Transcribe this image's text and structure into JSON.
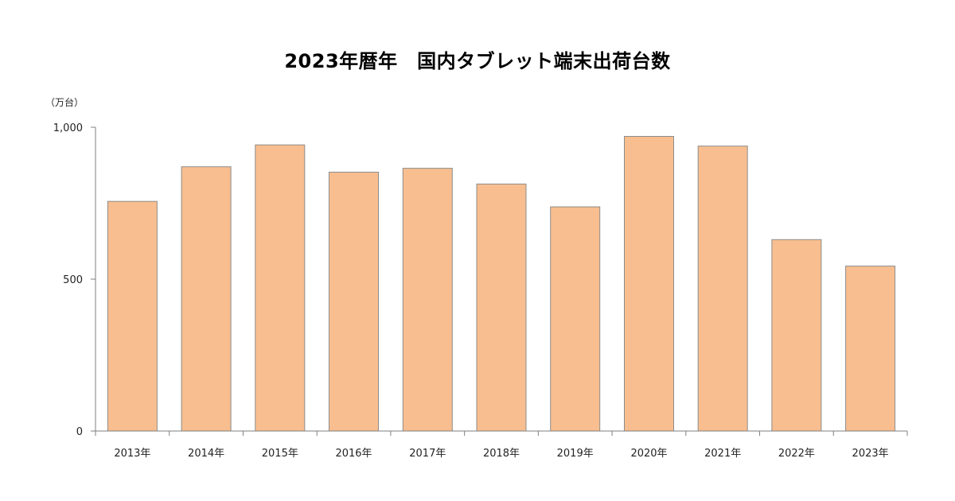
{
  "chart_data": {
    "type": "bar",
    "title": "2023年暦年　国内タブレット端末出荷台数",
    "y_unit_label": "（万台）",
    "xlabel": "",
    "ylabel": "",
    "categories": [
      "2013年",
      "2014年",
      "2015年",
      "2016年",
      "2017年",
      "2018年",
      "2019年",
      "2020年",
      "2021年",
      "2022年",
      "2023年"
    ],
    "values": [
      756,
      870,
      942,
      852,
      865,
      813,
      738,
      970,
      938,
      630,
      543
    ],
    "ylim": [
      0,
      1000
    ],
    "yticks": [
      0,
      500,
      1000
    ],
    "ytick_labels": [
      "0",
      "500",
      "1,000"
    ],
    "grid": false,
    "legend": "none",
    "colors": {
      "bar_fill": "#F8BE8F",
      "bar_stroke": "#8C8C8C",
      "axis": "#7F7F7F"
    }
  }
}
